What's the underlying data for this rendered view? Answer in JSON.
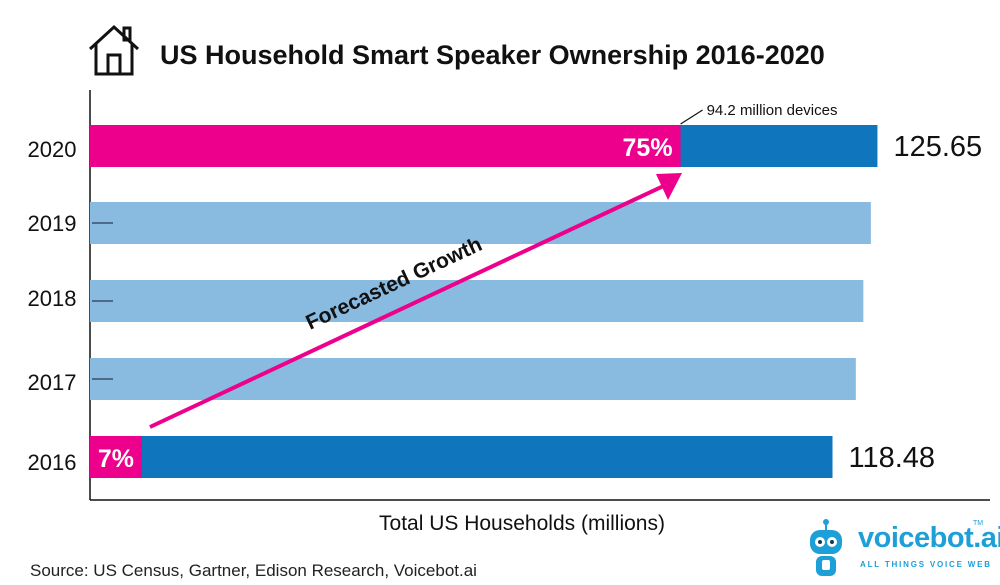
{
  "page": {
    "title": "US Household Smart Speaker Ownership 2016-2020",
    "source": "Source: US Census, Gartner, Edison Research, Voicebot.ai",
    "brand": {
      "name": "voicebot.ai",
      "tagline": "ALL THINGS VOICE WEB",
      "trademark": "TM"
    }
  },
  "colors": {
    "highlight": "#ec008c",
    "dark_bar": "#0f75bd",
    "light_bar": "#89badf",
    "arrow": "#ec008c"
  },
  "icons": [
    "house-icon",
    "voicebot-robot-logo-icon"
  ],
  "chart_data": {
    "type": "bar",
    "orientation": "horizontal",
    "title": "US Household Smart Speaker Ownership 2016-2020",
    "xlabel": "Total US Households (millions)",
    "ylabel": "",
    "categories": [
      "2020",
      "2019",
      "2018",
      "2017",
      "2016"
    ],
    "values": [
      125.65,
      124.6,
      123.4,
      122.2,
      118.48
    ],
    "value_labels": [
      "125.65",
      "",
      "",
      "",
      "118.48"
    ],
    "emphasized": [
      true,
      false,
      false,
      false,
      true
    ],
    "ownership_share": [
      {
        "category": "2020",
        "percent": 75,
        "label": "75%"
      },
      {
        "category": "2016",
        "percent": 7,
        "label": "7%"
      }
    ],
    "annotations": [
      {
        "category": "2020",
        "text": "94.2 million devices"
      },
      {
        "text": "Forecasted Growth",
        "from": "2016",
        "to": "2020"
      }
    ],
    "grid": false,
    "legend": "none"
  }
}
